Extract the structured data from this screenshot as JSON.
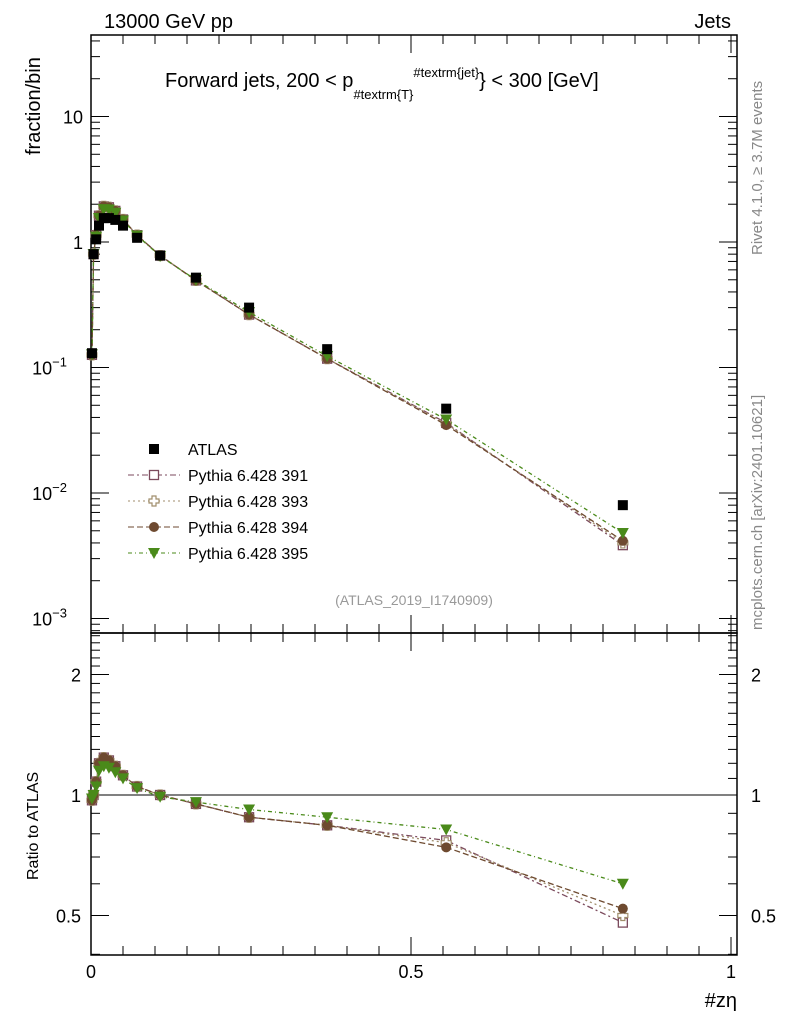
{
  "header": {
    "left": "13000 GeV pp",
    "right": "Jets"
  },
  "side": {
    "rivet": "Rivet 4.1.0, ≥ 3.7M events",
    "mcplots": "mcplots.cern.ch [arXiv:2401.10621]"
  },
  "chart_data": {
    "type": "line",
    "title": "Forward jets, 200 < p#textrm{T}#textrm{jet} < 300 [GeV]",
    "title_parts": {
      "a": "Forward jets, 200 < p",
      "sub": "#textrm{T}",
      "sup": "#textrm{jet}",
      "b": "} < 300 [GeV]"
    },
    "xlabel": "#zη",
    "ylabel": "fraction/bin",
    "ratio_ylabel": "Ratio to ATLAS",
    "analysis_tag": "(ATLAS_2019_I1740909)",
    "xlim": [
      0,
      1
    ],
    "ylim": [
      0.0008,
      50
    ],
    "ratio_ylim": [
      0.4,
      2.55
    ],
    "x_ticks": [
      "0",
      "0.5",
      "1"
    ],
    "y_ticks": [
      "10^-3",
      "10^-2",
      "10^-1",
      "1",
      "10"
    ],
    "ratio_ticks": [
      "0.5",
      "1",
      "2"
    ],
    "x": [
      0.0015,
      0.004,
      0.008,
      0.0125,
      0.02,
      0.028,
      0.038,
      0.05,
      0.072,
      0.108,
      0.164,
      0.247,
      0.369,
      0.555,
      0.831
    ],
    "data": {
      "name": "ATLAS",
      "values": [
        0.13,
        0.8,
        1.05,
        1.35,
        1.55,
        1.55,
        1.5,
        1.35,
        1.08,
        0.78,
        0.52,
        0.3,
        0.14,
        0.047,
        0.008
      ]
    },
    "series": [
      {
        "name": "Pythia 6.428 391",
        "color": "#7b4a5c",
        "marker": "open-square",
        "dash": "6,3,2,3",
        "ratio": [
          0.97,
          1.0,
          1.08,
          1.2,
          1.24,
          1.22,
          1.18,
          1.12,
          1.05,
          1.0,
          0.95,
          0.88,
          0.84,
          0.77,
          0.48
        ]
      },
      {
        "name": "Pythia 6.428 393",
        "color": "#a08e6c",
        "marker": "open-cross",
        "dash": "2,3",
        "ratio": [
          0.97,
          1.0,
          1.08,
          1.2,
          1.24,
          1.22,
          1.18,
          1.12,
          1.05,
          1.0,
          0.95,
          0.88,
          0.84,
          0.76,
          0.5
        ]
      },
      {
        "name": "Pythia 6.428 394",
        "color": "#6e4a30",
        "marker": "circle",
        "dash": "6,3",
        "ratio": [
          0.97,
          1.0,
          1.08,
          1.2,
          1.24,
          1.22,
          1.18,
          1.12,
          1.05,
          1.0,
          0.95,
          0.88,
          0.84,
          0.74,
          0.52
        ]
      },
      {
        "name": "Pythia 6.428 395",
        "color": "#4a8a1a",
        "marker": "triangle-down",
        "dash": "4,3,1,3",
        "ratio": [
          0.98,
          1.0,
          1.05,
          1.15,
          1.18,
          1.17,
          1.14,
          1.1,
          1.04,
          0.99,
          0.96,
          0.92,
          0.88,
          0.82,
          0.6
        ]
      }
    ]
  }
}
